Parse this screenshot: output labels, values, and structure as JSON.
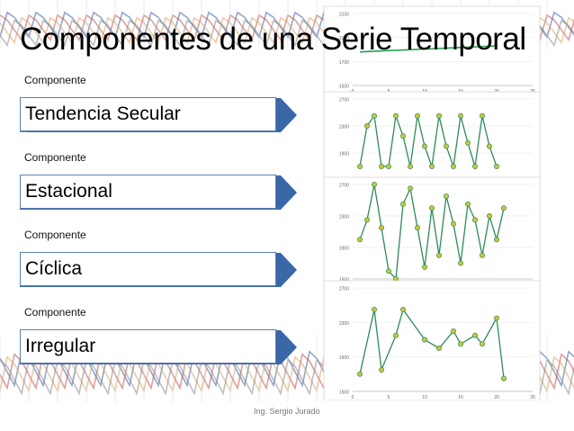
{
  "slide": {
    "title": "Componentes de una Serie Temporal",
    "footer": "Ing. Sergio Jurado"
  },
  "components": [
    {
      "label": "Componente",
      "name": "Tendencia Secular"
    },
    {
      "label": "Componente",
      "name": "Estacional"
    },
    {
      "label": "Componente",
      "name": "Cíclica"
    },
    {
      "label": "Componente",
      "name": "Irregular"
    }
  ],
  "colors": {
    "band": "#3a67a8",
    "band_light": "#6d93c9",
    "line": "#2e8b57",
    "marker": "#c8c83a",
    "trend": "#1fa050"
  },
  "chart_data": [
    {
      "type": "line",
      "name": "tendencia",
      "x": [
        0,
        25
      ],
      "y": [
        1600,
        1650
      ],
      "yticks": [
        1500,
        1700,
        1900,
        2100
      ],
      "xticks": [
        0,
        5,
        10,
        15,
        20,
        25
      ]
    },
    {
      "type": "line",
      "name": "estacional",
      "x": [
        1,
        2,
        3,
        4,
        5,
        6,
        7,
        8,
        9,
        10,
        11,
        12,
        13,
        14,
        15,
        16,
        17,
        18,
        19,
        20
      ],
      "y": [
        1700,
        2300,
        2450,
        1700,
        1700,
        2450,
        2150,
        1700,
        2450,
        2000,
        1700,
        2450,
        2000,
        1700,
        2450,
        2050,
        1700,
        2450,
        2000,
        1700
      ],
      "yticks": [
        1500,
        1900,
        2300,
        2700
      ],
      "xticks": [
        0,
        5,
        10,
        15,
        20,
        25
      ]
    },
    {
      "type": "line",
      "name": "ciclica",
      "x": [
        1,
        2,
        3,
        4,
        5,
        6,
        7,
        8,
        9,
        10,
        11,
        12,
        13,
        14,
        15,
        16,
        17,
        18,
        19,
        20,
        21
      ],
      "y": [
        2000,
        2250,
        2700,
        2150,
        1600,
        1500,
        2450,
        2650,
        2150,
        1650,
        2400,
        1800,
        2550,
        2200,
        1700,
        2450,
        2250,
        1800,
        2300,
        2000,
        2400
      ],
      "yticks": [
        1500,
        1900,
        2300,
        2700
      ],
      "xticks": [
        0,
        5,
        10,
        15,
        20,
        25
      ]
    },
    {
      "type": "line",
      "name": "irregular",
      "x": [
        1,
        3,
        4,
        6,
        7,
        10,
        12,
        14,
        15,
        17,
        18,
        20,
        21
      ],
      "y": [
        1700,
        2450,
        1750,
        2150,
        2450,
        2100,
        2000,
        2200,
        2050,
        2150,
        2050,
        2350,
        1650
      ],
      "yticks": [
        1500,
        1900,
        2300,
        2700
      ],
      "xticks": [
        0,
        5,
        10,
        15,
        20,
        25
      ]
    }
  ]
}
